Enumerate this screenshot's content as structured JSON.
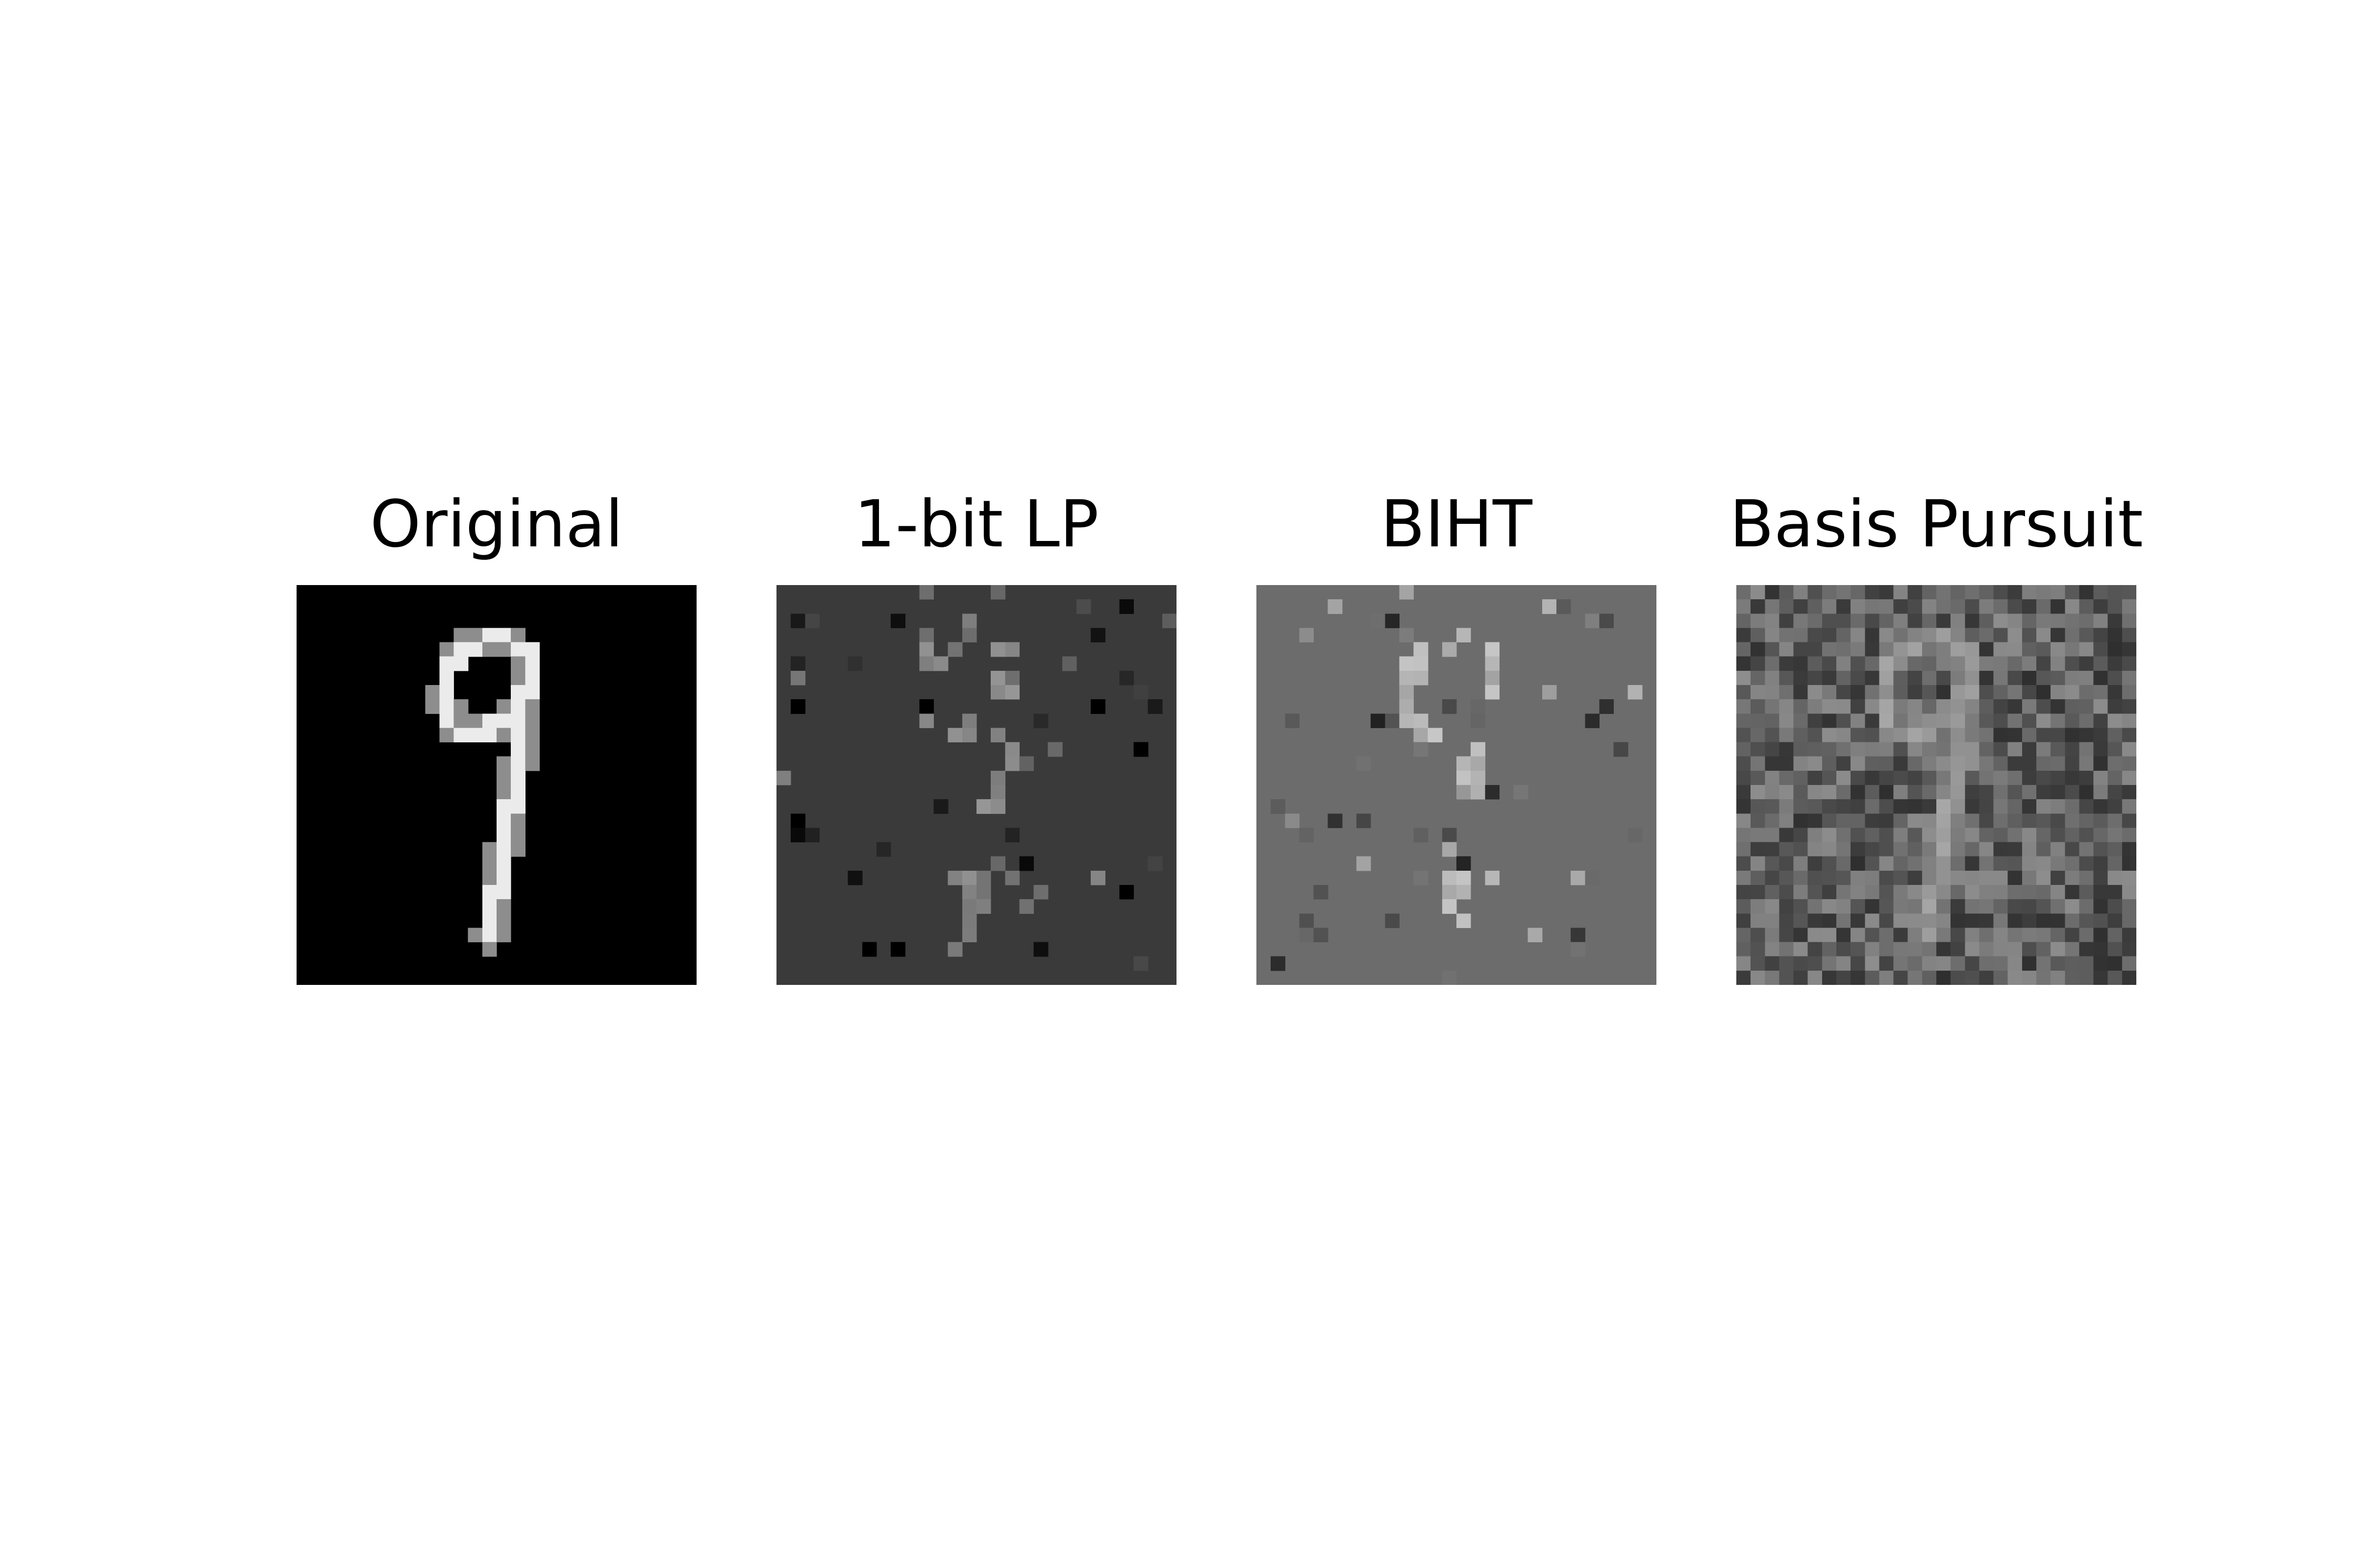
{
  "figure": {
    "panels": [
      {
        "key": "original",
        "title": "Original",
        "background": "#000000",
        "kind": "clean",
        "noise_density": 0.0,
        "digit_brightness": 235
      },
      {
        "key": "lp",
        "title": "1-bit LP",
        "background": "#3a3a3a",
        "kind": "sparse",
        "noise_density": 0.06,
        "digit_brightness": 150
      },
      {
        "key": "biht",
        "title": "BIHT",
        "background": "#6c6c6c",
        "kind": "sparse",
        "noise_density": 0.07,
        "digit_brightness": 200
      },
      {
        "key": "bp",
        "title": "Basis Pursuit",
        "background": "#5e5e5e",
        "kind": "dense",
        "noise_density": 1.0,
        "digit_brightness": 185
      }
    ]
  }
}
